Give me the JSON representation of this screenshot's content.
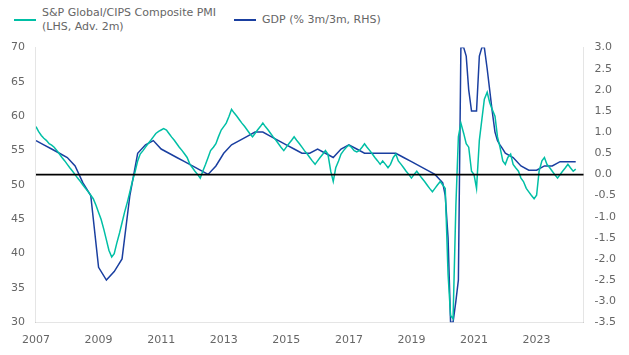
{
  "chart_data": {
    "type": "line",
    "legend": "upper left",
    "grid": false,
    "xlim": [
      2007,
      2024.5
    ],
    "xticks": [
      2007,
      2009,
      2011,
      2013,
      2015,
      2017,
      2019,
      2021,
      2023
    ],
    "ylim": [
      30,
      70
    ],
    "yticks": [
      30,
      35,
      40,
      45,
      50,
      55,
      60,
      65,
      70
    ],
    "y2lim": [
      -3.5,
      3.0
    ],
    "y2ticks": [
      -3.5,
      {
        "value": -3,
        "label": "-3.0"
      },
      -2.5,
      {
        "value": -2,
        "label": "-2.0"
      },
      -1.5,
      {
        "value": -1,
        "label": "-1.0"
      },
      -0.5,
      {
        "value": 0,
        "label": "0.0"
      },
      0.5,
      {
        "value": 1,
        "label": "1.0"
      },
      1.5,
      {
        "value": 2,
        "label": "2.0"
      },
      2.5,
      {
        "value": 3,
        "label": "3.0"
      }
    ],
    "reference_lines": [
      {
        "y": 51.5,
        "color": "#000000"
      }
    ],
    "series": [
      {
        "name": "S&P Global/CIPS Composite PMI\n(LHS, Adv. 2m)",
        "color": "#00BFA5",
        "axis": "y",
        "x": [
          2007.0,
          2007.08,
          2007.17,
          2007.25,
          2007.33,
          2007.42,
          2007.5,
          2007.58,
          2007.67,
          2007.75,
          2007.83,
          2007.92,
          2008.0,
          2008.08,
          2008.17,
          2008.25,
          2008.33,
          2008.42,
          2008.5,
          2008.58,
          2008.67,
          2008.75,
          2008.83,
          2008.92,
          2009.0,
          2009.08,
          2009.17,
          2009.25,
          2009.33,
          2009.42,
          2009.5,
          2009.58,
          2009.67,
          2009.75,
          2009.83,
          2009.92,
          2010.0,
          2010.08,
          2010.17,
          2010.25,
          2010.33,
          2010.42,
          2010.5,
          2010.58,
          2010.67,
          2010.75,
          2010.83,
          2010.92,
          2011.0,
          2011.08,
          2011.17,
          2011.25,
          2011.33,
          2011.42,
          2011.5,
          2011.58,
          2011.67,
          2011.75,
          2011.83,
          2011.92,
          2012.0,
          2012.08,
          2012.17,
          2012.25,
          2012.33,
          2012.42,
          2012.5,
          2012.58,
          2012.67,
          2012.75,
          2012.83,
          2012.92,
          2013.0,
          2013.08,
          2013.17,
          2013.25,
          2013.33,
          2013.42,
          2013.5,
          2013.58,
          2013.67,
          2013.75,
          2013.83,
          2013.92,
          2014.0,
          2014.08,
          2014.17,
          2014.25,
          2014.33,
          2014.42,
          2014.5,
          2014.58,
          2014.67,
          2014.75,
          2014.83,
          2014.92,
          2015.0,
          2015.08,
          2015.17,
          2015.25,
          2015.33,
          2015.42,
          2015.5,
          2015.58,
          2015.67,
          2015.75,
          2015.83,
          2015.92,
          2016.0,
          2016.08,
          2016.17,
          2016.25,
          2016.33,
          2016.42,
          2016.5,
          2016.58,
          2016.67,
          2016.75,
          2016.83,
          2016.92,
          2017.0,
          2017.08,
          2017.17,
          2017.25,
          2017.33,
          2017.42,
          2017.5,
          2017.58,
          2017.67,
          2017.75,
          2017.83,
          2017.92,
          2018.0,
          2018.08,
          2018.17,
          2018.25,
          2018.33,
          2018.42,
          2018.5,
          2018.58,
          2018.67,
          2018.75,
          2018.83,
          2018.92,
          2019.0,
          2019.08,
          2019.17,
          2019.25,
          2019.33,
          2019.42,
          2019.5,
          2019.58,
          2019.67,
          2019.75,
          2019.83,
          2019.92,
          2020.0,
          2020.08,
          2020.17,
          2020.25,
          2020.33,
          2020.42,
          2020.5,
          2020.58,
          2020.67,
          2020.75,
          2020.83,
          2020.92,
          2021.0,
          2021.08,
          2021.17,
          2021.25,
          2021.33,
          2021.42,
          2021.5,
          2021.58,
          2021.67,
          2021.75,
          2021.83,
          2021.92,
          2022.0,
          2022.08,
          2022.17,
          2022.25,
          2022.33,
          2022.42,
          2022.5,
          2022.58,
          2022.67,
          2022.75,
          2022.83,
          2022.92,
          2023.0,
          2023.08,
          2023.17,
          2023.25,
          2023.33,
          2023.42,
          2023.5,
          2023.58,
          2023.67,
          2023.75,
          2023.83,
          2023.92,
          2024.0,
          2024.08,
          2024.17,
          2024.25
        ],
        "values": [
          58.5,
          57.8,
          57.2,
          56.8,
          56.5,
          56.0,
          55.8,
          55.5,
          55.0,
          54.5,
          54.0,
          53.5,
          53.0,
          52.5,
          52.0,
          51.5,
          51.0,
          50.5,
          50.0,
          49.5,
          49.0,
          48.5,
          48.0,
          47.0,
          46.0,
          45.0,
          43.5,
          42.0,
          40.5,
          39.5,
          40.0,
          41.5,
          43.0,
          44.5,
          46.0,
          47.5,
          49.0,
          50.5,
          52.0,
          53.5,
          54.5,
          55.0,
          55.5,
          56.0,
          56.5,
          57.0,
          57.5,
          57.8,
          58.0,
          58.2,
          58.0,
          57.5,
          57.0,
          56.5,
          56.0,
          55.5,
          55.0,
          54.5,
          54.0,
          53.0,
          52.5,
          52.0,
          51.5,
          51.0,
          52.0,
          53.0,
          54.0,
          55.0,
          55.5,
          56.0,
          57.0,
          58.0,
          58.5,
          59.0,
          60.0,
          61.0,
          60.5,
          60.0,
          59.5,
          59.0,
          58.5,
          58.0,
          57.5,
          57.0,
          57.5,
          58.0,
          58.5,
          59.0,
          58.5,
          58.0,
          57.5,
          57.0,
          56.5,
          56.0,
          55.5,
          55.0,
          55.5,
          56.0,
          56.5,
          57.0,
          56.5,
          56.0,
          55.5,
          55.0,
          54.5,
          54.0,
          53.5,
          53.0,
          53.5,
          54.0,
          54.5,
          55.0,
          54.5,
          52.0,
          50.5,
          52.5,
          53.5,
          54.5,
          55.0,
          55.5,
          55.8,
          55.5,
          55.0,
          54.8,
          55.0,
          55.5,
          56.0,
          55.5,
          55.0,
          54.5,
          54.0,
          53.5,
          53.0,
          53.5,
          53.0,
          52.5,
          53.0,
          54.0,
          54.5,
          53.5,
          53.0,
          52.5,
          52.0,
          51.5,
          51.0,
          51.5,
          52.0,
          51.5,
          51.0,
          50.5,
          50.0,
          49.5,
          49.0,
          49.5,
          50.0,
          50.5,
          50.0,
          49.5,
          37.0,
          31.0,
          30.5,
          47.0,
          57.0,
          59.0,
          57.5,
          56.0,
          55.5,
          52.0,
          51.5,
          49.5,
          56.5,
          59.5,
          62.5,
          63.5,
          62.0,
          61.0,
          60.0,
          57.0,
          55.5,
          53.5,
          53.0,
          54.0,
          54.5,
          53.0,
          52.5,
          52.0,
          51.0,
          50.5,
          49.5,
          49.0,
          48.5,
          48.0,
          48.5,
          52.0,
          53.5,
          54.0,
          53.0,
          52.5,
          52.0,
          51.5,
          51.0,
          51.5,
          52.0,
          52.5,
          53.0,
          52.5,
          52.0,
          52.3
        ]
      },
      {
        "name": "GDP (% 3m/3m, RHS)",
        "color": "#1A3FA0",
        "axis": "y2",
        "x": [
          2007.0,
          2007.25,
          2007.5,
          2007.75,
          2008.0,
          2008.25,
          2008.5,
          2008.75,
          2009.0,
          2009.25,
          2009.5,
          2009.75,
          2010.0,
          2010.25,
          2010.5,
          2010.75,
          2011.0,
          2011.25,
          2011.5,
          2011.75,
          2012.0,
          2012.25,
          2012.5,
          2012.75,
          2013.0,
          2013.25,
          2013.5,
          2013.75,
          2014.0,
          2014.25,
          2014.5,
          2014.75,
          2015.0,
          2015.25,
          2015.5,
          2015.75,
          2016.0,
          2016.25,
          2016.5,
          2016.75,
          2017.0,
          2017.25,
          2017.5,
          2017.75,
          2018.0,
          2018.25,
          2018.5,
          2018.75,
          2019.0,
          2019.25,
          2019.5,
          2019.75,
          2020.0,
          2020.08,
          2020.17,
          2020.25,
          2020.33,
          2020.42,
          2020.5,
          2020.58,
          2020.67,
          2020.75,
          2020.83,
          2020.92,
          2021.0,
          2021.08,
          2021.17,
          2021.25,
          2021.33,
          2021.42,
          2021.5,
          2021.58,
          2021.67,
          2021.75,
          2021.83,
          2021.92,
          2022.0,
          2022.25,
          2022.5,
          2022.75,
          2023.0,
          2023.25,
          2023.5,
          2023.75,
          2024.0,
          2024.25
        ],
        "values": [
          0.8,
          0.7,
          0.6,
          0.5,
          0.4,
          0.2,
          -0.2,
          -0.5,
          -2.2,
          -2.5,
          -2.3,
          -2.0,
          -0.5,
          0.5,
          0.7,
          0.8,
          0.6,
          0.5,
          0.4,
          0.3,
          0.2,
          0.1,
          0.0,
          0.2,
          0.5,
          0.7,
          0.8,
          0.9,
          1.0,
          1.0,
          0.9,
          0.8,
          0.7,
          0.6,
          0.5,
          0.5,
          0.6,
          0.5,
          0.4,
          0.6,
          0.7,
          0.6,
          0.5,
          0.5,
          0.5,
          0.5,
          0.5,
          0.4,
          0.3,
          0.2,
          0.1,
          0.0,
          -0.2,
          -0.5,
          -1.5,
          -3.5,
          -3.5,
          -3.0,
          -2.5,
          3.0,
          3.0,
          2.8,
          2.0,
          1.5,
          1.5,
          1.5,
          2.8,
          3.0,
          3.0,
          2.5,
          2.0,
          1.5,
          1.0,
          0.8,
          0.7,
          0.6,
          0.5,
          0.4,
          0.2,
          0.1,
          0.1,
          0.2,
          0.2,
          0.3,
          0.3,
          0.3
        ]
      }
    ]
  }
}
